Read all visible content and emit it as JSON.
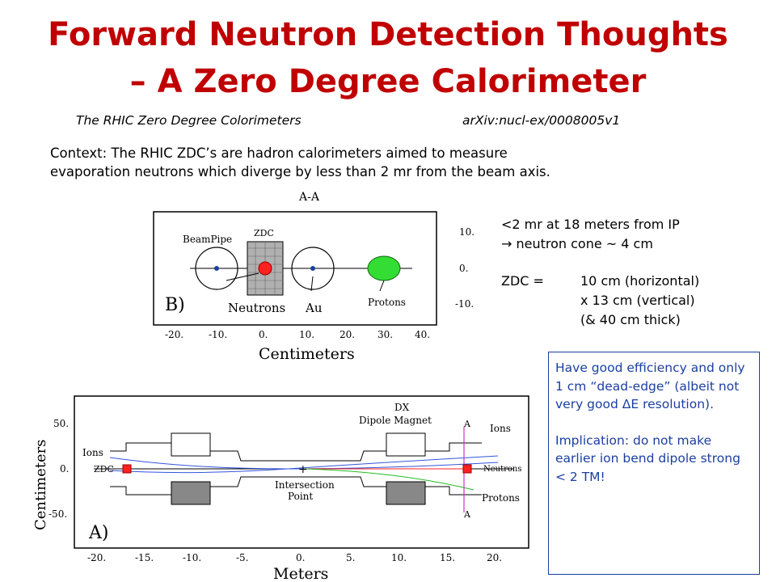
{
  "title": {
    "line1": "Forward Neutron Detection Thoughts",
    "line2": "– A Zero Degree Calorimeter"
  },
  "reference": {
    "paper": "The RHIC Zero Degree Colorimeters",
    "arxiv": "arXiv:nucl-ex/0008005v1"
  },
  "context": {
    "line1": "Context: The RHIC ZDC’s are hadron calorimeters aimed to measure",
    "line2": "evaporation neutrons which diverge by less than 2 mr from the beam axis."
  },
  "notes": {
    "line1": "<2 mr at 18 meters from IP",
    "line2": "→  neutron cone ~ 4 cm",
    "zdc_label": "ZDC =",
    "zdc_dim1": "10 cm (horizontal)",
    "zdc_dim2": "x 13 cm (vertical)",
    "zdc_dim3": "(& 40 cm thick)"
  },
  "box": {
    "para1": "Have good efficiency and only 1 cm “dead-edge” (albeit not very good ΔE resolution).",
    "para2": "Implication: do not make earlier ion bend dipole strong < 2 TM!"
  },
  "figureB": {
    "header": "A-A",
    "panel_label": "B)",
    "labels": {
      "beampipe": "BeamPipe",
      "zdc": "ZDC",
      "neutrons": "Neutrons",
      "au": "Au",
      "protons": "Protons"
    },
    "x_ticks": [
      "-20.",
      "-10.",
      "0.",
      "10.",
      "20.",
      "30.",
      "40."
    ],
    "y_ticks": [
      "10.",
      "0.",
      "-10."
    ],
    "x_axis_label": "Centimeters"
  },
  "figureA": {
    "panel_label": "A)",
    "labels": {
      "dx": "DX",
      "dipole": "Dipole Magnet",
      "ions_left": "Ions",
      "zdc": "ZDC",
      "intersection1": "Intersection",
      "intersection2": "Point",
      "a_top": "A",
      "a_bottom": "A",
      "ions_right": "Ions",
      "neutrons": "Neutrons",
      "protons": "Protons"
    },
    "x_ticks": [
      "-20.",
      "-15.",
      "-10.",
      "-5.",
      "0.",
      "5.",
      "10.",
      "15.",
      "20."
    ],
    "y_ticks": [
      "50.",
      "0.",
      "-50."
    ],
    "x_axis_label": "Meters",
    "y_axis_label": "Centimeters"
  },
  "colors": {
    "title": "#c00000",
    "box": "#1a3fa0"
  }
}
